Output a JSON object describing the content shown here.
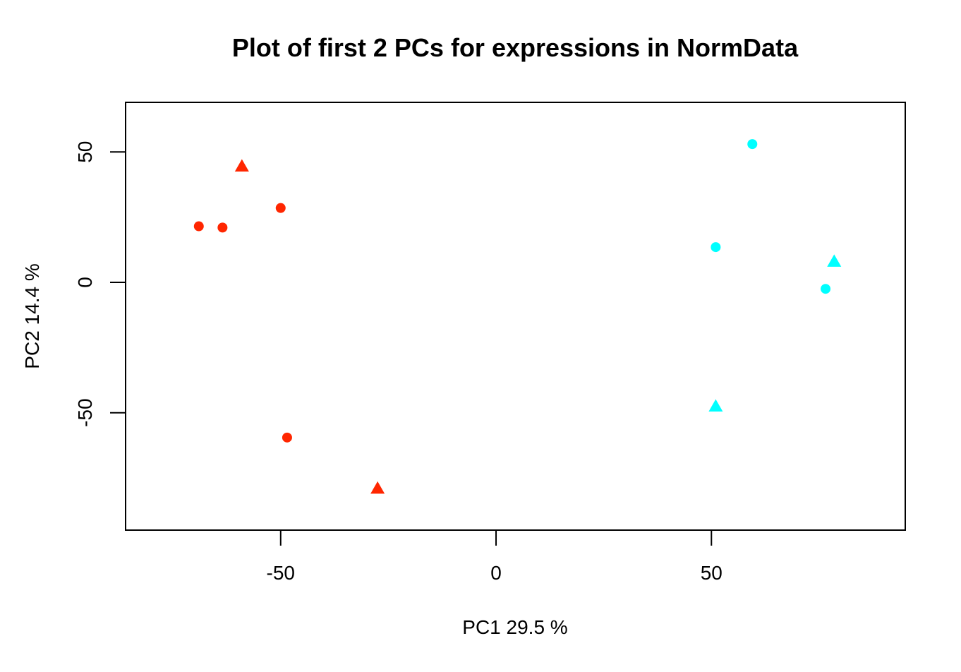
{
  "chart_data": {
    "type": "scatter",
    "title": "Plot of first 2 PCs for expressions in NormData",
    "xlabel": "PC1 29.5 %",
    "ylabel": "PC2 14.4 %",
    "xlim": [
      -86,
      95
    ],
    "ylim": [
      -95,
      69
    ],
    "xticks": [
      -50,
      0,
      50
    ],
    "yticks": [
      -50,
      0,
      50
    ],
    "grid": false,
    "series": [
      {
        "color": "#ff2600",
        "marker": "circle",
        "points": [
          {
            "x": -69,
            "y": 21.5
          },
          {
            "x": -63.5,
            "y": 21
          },
          {
            "x": -50,
            "y": 28.5
          },
          {
            "x": -48.5,
            "y": -59.5
          }
        ]
      },
      {
        "color": "#ff2600",
        "marker": "triangle",
        "points": [
          {
            "x": -59,
            "y": 44.5
          },
          {
            "x": -27.5,
            "y": -79
          }
        ]
      },
      {
        "color": "#00ffff",
        "marker": "circle",
        "points": [
          {
            "x": 59.5,
            "y": 53
          },
          {
            "x": 51,
            "y": 13.5
          },
          {
            "x": 76.5,
            "y": -2.5
          }
        ]
      },
      {
        "color": "#00ffff",
        "marker": "triangle",
        "points": [
          {
            "x": 78.5,
            "y": 8
          },
          {
            "x": 51,
            "y": -47.5
          }
        ]
      }
    ]
  }
}
